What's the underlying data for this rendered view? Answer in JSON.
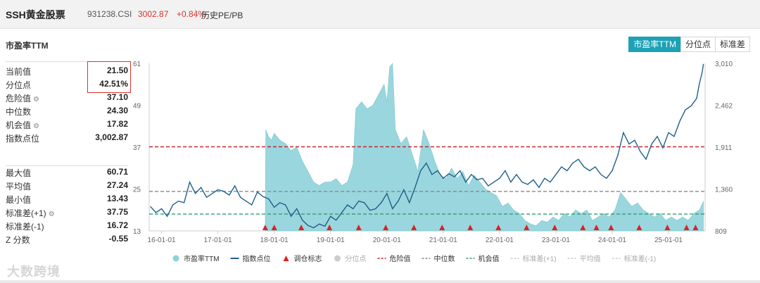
{
  "header": {
    "name": "SSH黄金股票",
    "code": "931238.CSI",
    "price": "3002.87",
    "change": "+0.84%",
    "history_label": "历史PE/PB"
  },
  "section_title": "市盈率TTM",
  "tabs": [
    {
      "label": "市盈率TTM",
      "active": true
    },
    {
      "label": "分位点",
      "active": false
    },
    {
      "label": "标准差",
      "active": false
    }
  ],
  "stats_top": [
    {
      "label": "当前值",
      "value": "21.50",
      "gear": false
    },
    {
      "label": "分位点",
      "value": "42.51%",
      "gear": false
    },
    {
      "label": "危险值",
      "value": "37.10",
      "gear": true
    },
    {
      "label": "中位数",
      "value": "24.30",
      "gear": false
    },
    {
      "label": "机会值",
      "value": "17.82",
      "gear": true
    },
    {
      "label": "指数点位",
      "value": "3,002.87",
      "gear": false
    }
  ],
  "stats_bottom": [
    {
      "label": "最大值",
      "value": "60.71",
      "gear": false
    },
    {
      "label": "平均值",
      "value": "27.24",
      "gear": false
    },
    {
      "label": "最小值",
      "value": "13.43",
      "gear": false
    },
    {
      "label": "标准差(+1)",
      "value": "37.75",
      "gear": true
    },
    {
      "label": "标准差(-1)",
      "value": "16.72",
      "gear": false
    },
    {
      "label": "Z 分数",
      "value": "-0.55",
      "gear": false
    }
  ],
  "watermark": "大数跨境",
  "chart_data": {
    "type": "area",
    "x_ticks": [
      "16-01-01",
      "17-01-01",
      "18-01-01",
      "19-01-01",
      "20-01-01",
      "21-01-01",
      "22-01-01",
      "23-01-01",
      "24-01-01",
      "25-01-01"
    ],
    "left_axis": {
      "ticks": [
        "61",
        "49",
        "37",
        "25",
        "13"
      ],
      "range": [
        13,
        61
      ]
    },
    "right_axis": {
      "ticks": [
        "3,010",
        "2,462",
        "1,911",
        "1,360",
        "809"
      ],
      "range": [
        809,
        3010
      ]
    },
    "reference_lines": [
      {
        "name": "危险值",
        "value": 37.1,
        "color": "#c0282d"
      },
      {
        "name": "中位数",
        "value": 24.3,
        "color": "#888888"
      },
      {
        "name": "机会值",
        "value": 17.82,
        "color": "#2e9e6b"
      }
    ],
    "pe_series": {
      "name": "市盈率TTM",
      "color": "#8fd1d9",
      "points": [
        [
          2017.84,
          13
        ],
        [
          2017.85,
          42
        ],
        [
          2017.9,
          40
        ],
        [
          2017.95,
          39
        ],
        [
          2018.0,
          41
        ],
        [
          2018.1,
          39
        ],
        [
          2018.2,
          38
        ],
        [
          2018.3,
          36
        ],
        [
          2018.4,
          37
        ],
        [
          2018.5,
          33
        ],
        [
          2018.6,
          30
        ],
        [
          2018.7,
          27
        ],
        [
          2018.8,
          26
        ],
        [
          2018.9,
          27
        ],
        [
          2019.0,
          27
        ],
        [
          2019.1,
          28
        ],
        [
          2019.2,
          26
        ],
        [
          2019.3,
          27
        ],
        [
          2019.4,
          32
        ],
        [
          2019.45,
          48
        ],
        [
          2019.55,
          50
        ],
        [
          2019.65,
          48
        ],
        [
          2019.75,
          49
        ],
        [
          2019.85,
          52
        ],
        [
          2019.95,
          55
        ],
        [
          2020.0,
          50
        ],
        [
          2020.05,
          60
        ],
        [
          2020.1,
          61
        ],
        [
          2020.15,
          42
        ],
        [
          2020.25,
          38
        ],
        [
          2020.35,
          40
        ],
        [
          2020.45,
          35
        ],
        [
          2020.55,
          30
        ],
        [
          2020.65,
          42
        ],
        [
          2020.75,
          38
        ],
        [
          2020.85,
          33
        ],
        [
          2020.95,
          29
        ],
        [
          2021.05,
          28
        ],
        [
          2021.15,
          31
        ],
        [
          2021.25,
          28
        ],
        [
          2021.35,
          30
        ],
        [
          2021.45,
          26
        ],
        [
          2021.55,
          29
        ],
        [
          2021.65,
          27
        ],
        [
          2021.75,
          25
        ],
        [
          2021.85,
          24
        ],
        [
          2021.95,
          23
        ],
        [
          2022.05,
          20
        ],
        [
          2022.15,
          21
        ],
        [
          2022.25,
          19
        ],
        [
          2022.35,
          18
        ],
        [
          2022.45,
          16
        ],
        [
          2022.55,
          15
        ],
        [
          2022.65,
          14.5
        ],
        [
          2022.75,
          16
        ],
        [
          2022.85,
          15.5
        ],
        [
          2022.95,
          17
        ],
        [
          2023.05,
          16
        ],
        [
          2023.15,
          18
        ],
        [
          2023.25,
          17
        ],
        [
          2023.35,
          19
        ],
        [
          2023.45,
          18
        ],
        [
          2023.55,
          19
        ],
        [
          2023.65,
          16
        ],
        [
          2023.75,
          17
        ],
        [
          2023.85,
          18
        ],
        [
          2023.95,
          17
        ],
        [
          2024.05,
          19
        ],
        [
          2024.15,
          24
        ],
        [
          2024.25,
          22
        ],
        [
          2024.35,
          20
        ],
        [
          2024.45,
          21
        ],
        [
          2024.55,
          19
        ],
        [
          2024.65,
          18
        ],
        [
          2024.75,
          17
        ],
        [
          2024.85,
          18
        ],
        [
          2024.95,
          16
        ],
        [
          2025.05,
          17
        ],
        [
          2025.15,
          16
        ],
        [
          2025.25,
          17
        ],
        [
          2025.35,
          16
        ],
        [
          2025.45,
          18
        ],
        [
          2025.55,
          19
        ],
        [
          2025.62,
          21.5
        ]
      ]
    },
    "index_series": {
      "name": "指数点位",
      "color": "#1f5f8b",
      "points": [
        [
          2015.8,
          1130
        ],
        [
          2015.9,
          1050
        ],
        [
          2016.0,
          1100
        ],
        [
          2016.1,
          1000
        ],
        [
          2016.2,
          1150
        ],
        [
          2016.3,
          1200
        ],
        [
          2016.4,
          1180
        ],
        [
          2016.5,
          1450
        ],
        [
          2016.6,
          1300
        ],
        [
          2016.7,
          1380
        ],
        [
          2016.8,
          1250
        ],
        [
          2016.9,
          1300
        ],
        [
          2017.0,
          1350
        ],
        [
          2017.1,
          1330
        ],
        [
          2017.2,
          1280
        ],
        [
          2017.3,
          1400
        ],
        [
          2017.4,
          1250
        ],
        [
          2017.5,
          1200
        ],
        [
          2017.6,
          1150
        ],
        [
          2017.7,
          1320
        ],
        [
          2017.8,
          1260
        ],
        [
          2017.9,
          1230
        ],
        [
          2018.0,
          1120
        ],
        [
          2018.1,
          1180
        ],
        [
          2018.2,
          1150
        ],
        [
          2018.3,
          1000
        ],
        [
          2018.4,
          1100
        ],
        [
          2018.5,
          950
        ],
        [
          2018.6,
          880
        ],
        [
          2018.7,
          850
        ],
        [
          2018.8,
          900
        ],
        [
          2018.9,
          870
        ],
        [
          2019.0,
          1000
        ],
        [
          2019.1,
          950
        ],
        [
          2019.2,
          1050
        ],
        [
          2019.3,
          1150
        ],
        [
          2019.4,
          1100
        ],
        [
          2019.5,
          1200
        ],
        [
          2019.6,
          1180
        ],
        [
          2019.7,
          1080
        ],
        [
          2019.8,
          1100
        ],
        [
          2019.9,
          1180
        ],
        [
          2020.0,
          1300
        ],
        [
          2020.1,
          1100
        ],
        [
          2020.2,
          1200
        ],
        [
          2020.3,
          1350
        ],
        [
          2020.4,
          1180
        ],
        [
          2020.5,
          1380
        ],
        [
          2020.6,
          1600
        ],
        [
          2020.7,
          1700
        ],
        [
          2020.8,
          1550
        ],
        [
          2020.9,
          1600
        ],
        [
          2021.0,
          1500
        ],
        [
          2021.1,
          1560
        ],
        [
          2021.2,
          1520
        ],
        [
          2021.3,
          1600
        ],
        [
          2021.4,
          1450
        ],
        [
          2021.5,
          1550
        ],
        [
          2021.6,
          1480
        ],
        [
          2021.7,
          1500
        ],
        [
          2021.8,
          1400
        ],
        [
          2021.9,
          1450
        ],
        [
          2022.0,
          1500
        ],
        [
          2022.1,
          1600
        ],
        [
          2022.2,
          1450
        ],
        [
          2022.3,
          1550
        ],
        [
          2022.4,
          1450
        ],
        [
          2022.5,
          1420
        ],
        [
          2022.6,
          1480
        ],
        [
          2022.7,
          1380
        ],
        [
          2022.8,
          1500
        ],
        [
          2022.9,
          1450
        ],
        [
          2023.0,
          1550
        ],
        [
          2023.1,
          1650
        ],
        [
          2023.2,
          1600
        ],
        [
          2023.3,
          1700
        ],
        [
          2023.4,
          1750
        ],
        [
          2023.5,
          1650
        ],
        [
          2023.6,
          1600
        ],
        [
          2023.7,
          1650
        ],
        [
          2023.8,
          1550
        ],
        [
          2023.9,
          1500
        ],
        [
          2024.0,
          1600
        ],
        [
          2024.1,
          1800
        ],
        [
          2024.2,
          2100
        ],
        [
          2024.3,
          1950
        ],
        [
          2024.4,
          2000
        ],
        [
          2024.5,
          1850
        ],
        [
          2024.6,
          1750
        ],
        [
          2024.7,
          1950
        ],
        [
          2024.8,
          2050
        ],
        [
          2024.9,
          1900
        ],
        [
          2025.0,
          2100
        ],
        [
          2025.1,
          2050
        ],
        [
          2025.2,
          2250
        ],
        [
          2025.3,
          2400
        ],
        [
          2025.4,
          2450
        ],
        [
          2025.5,
          2550
        ],
        [
          2025.55,
          2750
        ],
        [
          2025.6,
          2900
        ],
        [
          2025.62,
          3002.87
        ]
      ]
    },
    "rebalance_markers": [
      2017.84,
      2018.0,
      2018.48,
      2018.98,
      2019.5,
      2019.98,
      2020.48,
      2020.98,
      2021.48,
      2021.98,
      2022.48,
      2022.98,
      2023.48,
      2023.72,
      2023.98,
      2024.48,
      2024.98,
      2025.32,
      2025.48
    ],
    "legend": [
      {
        "label": "市盈率TTM",
        "kind": "dot",
        "color": "#8fd1d9"
      },
      {
        "label": "指数点位",
        "kind": "line",
        "color": "#1f5f8b"
      },
      {
        "label": "调仓标志",
        "kind": "triangle",
        "color": "#e02020"
      },
      {
        "label": "分位点",
        "kind": "dot",
        "color": "#cccccc"
      },
      {
        "label": "危险值",
        "kind": "dash",
        "color": "#c0282d"
      },
      {
        "label": "中位数",
        "kind": "dash",
        "color": "#888888"
      },
      {
        "label": "机会值",
        "kind": "dash",
        "color": "#2e9e6b"
      },
      {
        "label": "标准差(+1)",
        "kind": "dash",
        "color": "#cccccc"
      },
      {
        "label": "平均值",
        "kind": "dash",
        "color": "#cccccc"
      },
      {
        "label": "标准差(-1)",
        "kind": "dash",
        "color": "#cccccc"
      }
    ],
    "legend_position": "bottom"
  }
}
